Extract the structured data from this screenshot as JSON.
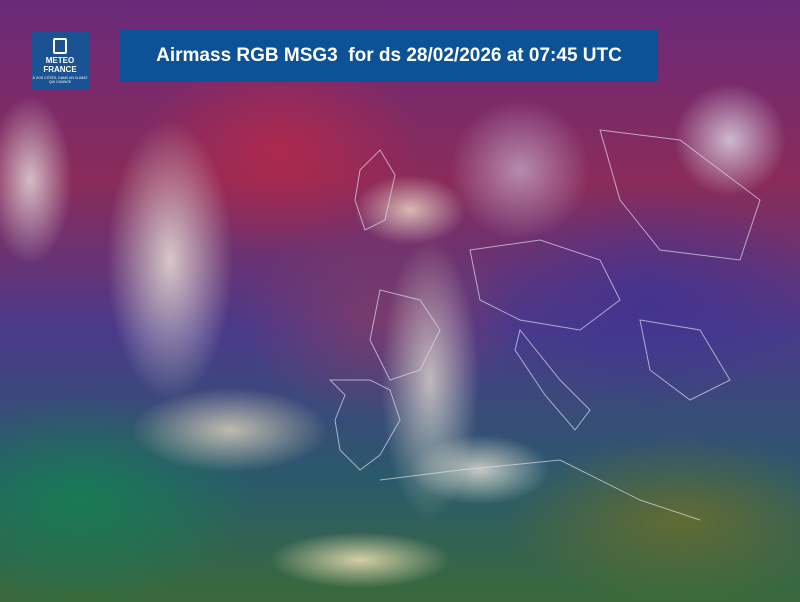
{
  "logo": {
    "name_line1": "METEO",
    "name_line2": "FRANCE",
    "tagline": "À VOS CÔTÉS, DANS UN CLIMAT QUI CHANGE",
    "color": "#1a5293"
  },
  "title": "Airmass RGB MSG3  for ds 28/02/2026 at 07:45 UTC",
  "title_bg": "#0d5296",
  "map": {
    "type": "satellite-airmass-rgb",
    "region": "Europe / North Atlantic"
  }
}
